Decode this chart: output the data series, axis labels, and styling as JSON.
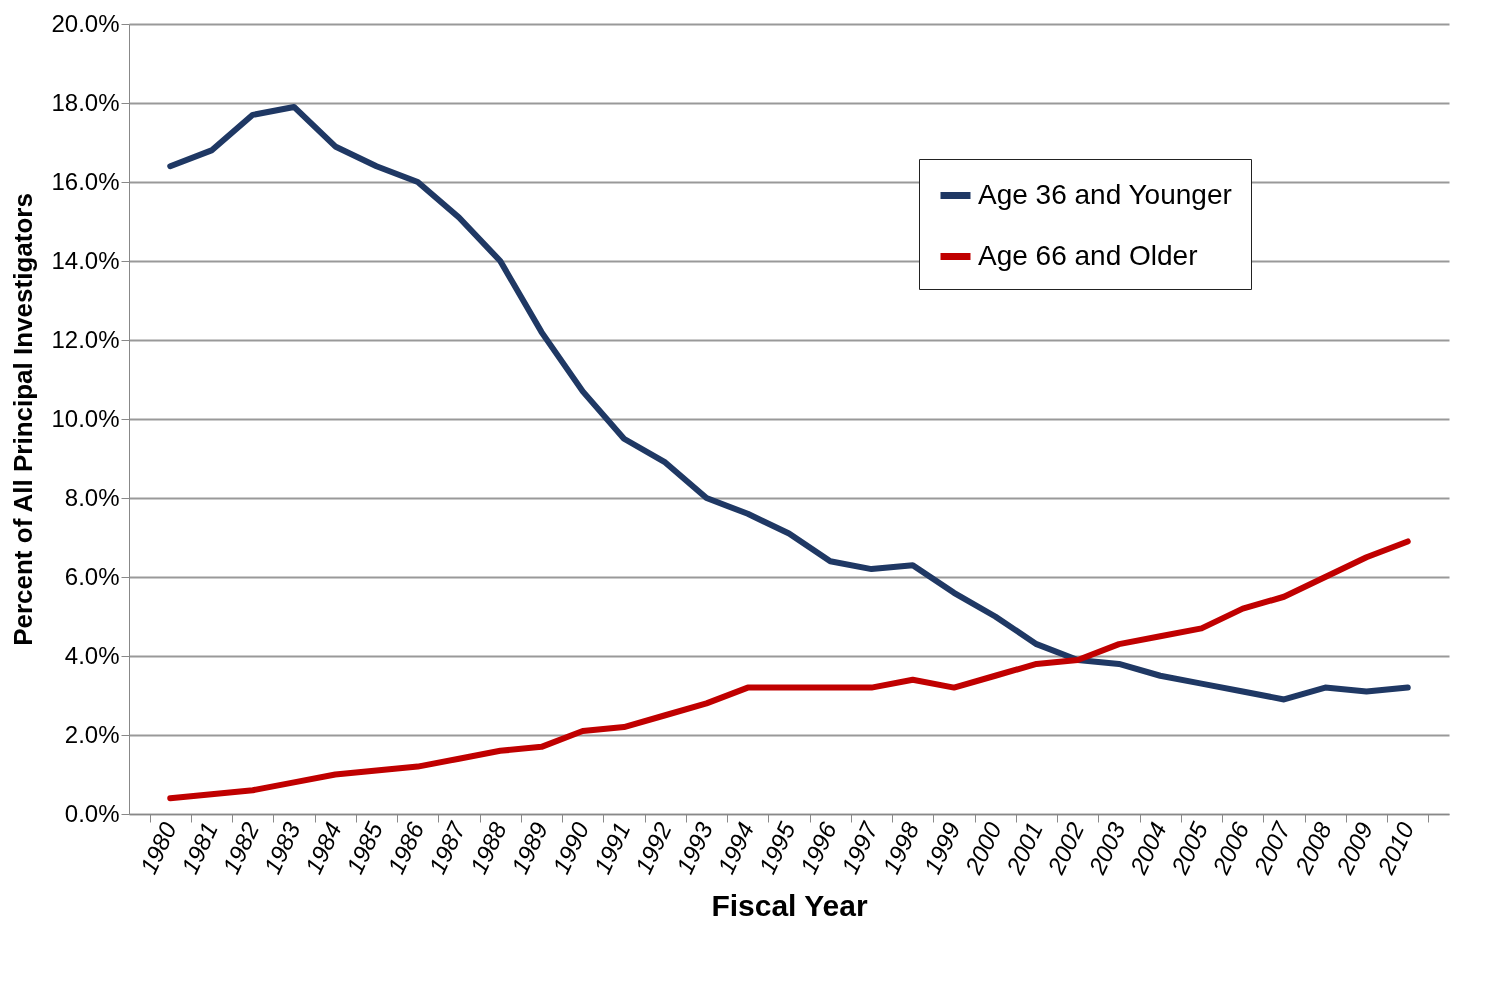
{
  "chart_data": {
    "type": "line",
    "xlabel": "Fiscal Year",
    "ylabel": "Percent of All Principal Investigators",
    "categories": [
      "1980",
      "1981",
      "1982",
      "1983",
      "1984",
      "1985",
      "1986",
      "1987",
      "1988",
      "1989",
      "1990",
      "1991",
      "1992",
      "1993",
      "1994",
      "1995",
      "1996",
      "1997",
      "1998",
      "1999",
      "2000",
      "2001",
      "2002",
      "2003",
      "2004",
      "2005",
      "2006",
      "2007",
      "2008",
      "2009",
      "2010"
    ],
    "series": [
      {
        "name": "Age 36 and Younger",
        "color": "#1f3864",
        "values": [
          16.4,
          16.8,
          17.7,
          17.9,
          16.9,
          16.4,
          16.0,
          15.1,
          14.0,
          12.2,
          10.7,
          9.5,
          8.9,
          8.0,
          7.6,
          7.1,
          6.4,
          6.2,
          6.3,
          5.6,
          5.0,
          4.3,
          3.9,
          3.8,
          3.5,
          3.3,
          3.1,
          2.9,
          3.2,
          3.1,
          3.2
        ]
      },
      {
        "name": "Age 66 and Older",
        "color": "#c00000",
        "values": [
          0.4,
          0.5,
          0.6,
          0.8,
          1.0,
          1.1,
          1.2,
          1.4,
          1.6,
          1.7,
          2.1,
          2.2,
          2.5,
          2.8,
          3.2,
          3.2,
          3.2,
          3.2,
          3.4,
          3.2,
          3.5,
          3.8,
          3.9,
          4.3,
          4.5,
          4.7,
          5.2,
          5.5,
          6.0,
          6.5,
          6.9
        ]
      }
    ],
    "ylim": [
      0,
      20
    ],
    "yticks": [
      {
        "value": 0,
        "label": "0.0%"
      },
      {
        "value": 2,
        "label": "2.0%"
      },
      {
        "value": 4,
        "label": "4.0%"
      },
      {
        "value": 6,
        "label": "6.0%"
      },
      {
        "value": 8,
        "label": "8.0%"
      },
      {
        "value": 10,
        "label": "10.0%"
      },
      {
        "value": 12,
        "label": "12.0%"
      },
      {
        "value": 14,
        "label": "14.0%"
      },
      {
        "value": 16,
        "label": "16.0%"
      },
      {
        "value": 18,
        "label": "18.0%"
      },
      {
        "value": 20,
        "label": "20.0%"
      }
    ],
    "grid": "y",
    "legend": "top right",
    "marker": "none",
    "line_style": "solid"
  }
}
